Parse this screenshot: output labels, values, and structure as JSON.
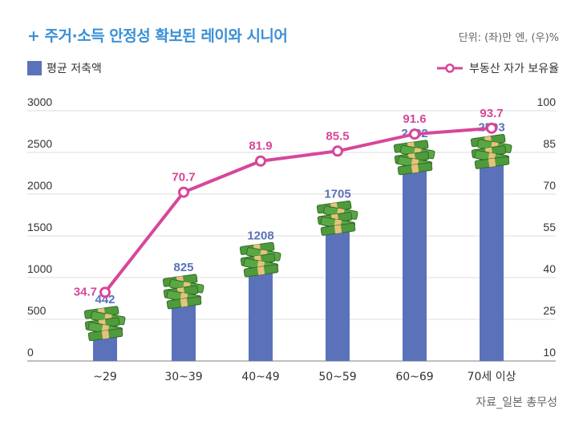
{
  "header": {
    "title": "+ 주거·소득 안정성 확보된 레이와 시니어",
    "unit": "단위: (좌)만 엔, (우)%"
  },
  "legend": {
    "bar_label": "평균 저축액",
    "line_label": "부동산 자가 보유율"
  },
  "source": "자료_일본 총무성",
  "colors": {
    "bar": "#5b72bb",
    "line": "#d6479a",
    "title": "#3a8fd6",
    "money": "#4f9a3c"
  },
  "chart_data": {
    "type": "bar",
    "categories": [
      "~29",
      "30~39",
      "40~49",
      "50~59",
      "60~69",
      "70세 이상"
    ],
    "series": [
      {
        "name": "평균 저축액",
        "type": "bar",
        "axis": "left",
        "values": [
          442,
          825,
          1208,
          1705,
          2432,
          2503
        ]
      },
      {
        "name": "부동산 자가 보유율",
        "type": "line",
        "axis": "right",
        "values": [
          34.7,
          70.7,
          81.9,
          85.5,
          91.6,
          93.7
        ]
      }
    ],
    "ylim_left": [
      0,
      3000
    ],
    "yticks_left": [
      0,
      500,
      1000,
      1500,
      2000,
      2500,
      3000
    ],
    "ylim_right": [
      10,
      100
    ],
    "yticks_right": [
      10,
      25,
      40,
      55,
      70,
      85,
      100
    ],
    "grid": true
  }
}
